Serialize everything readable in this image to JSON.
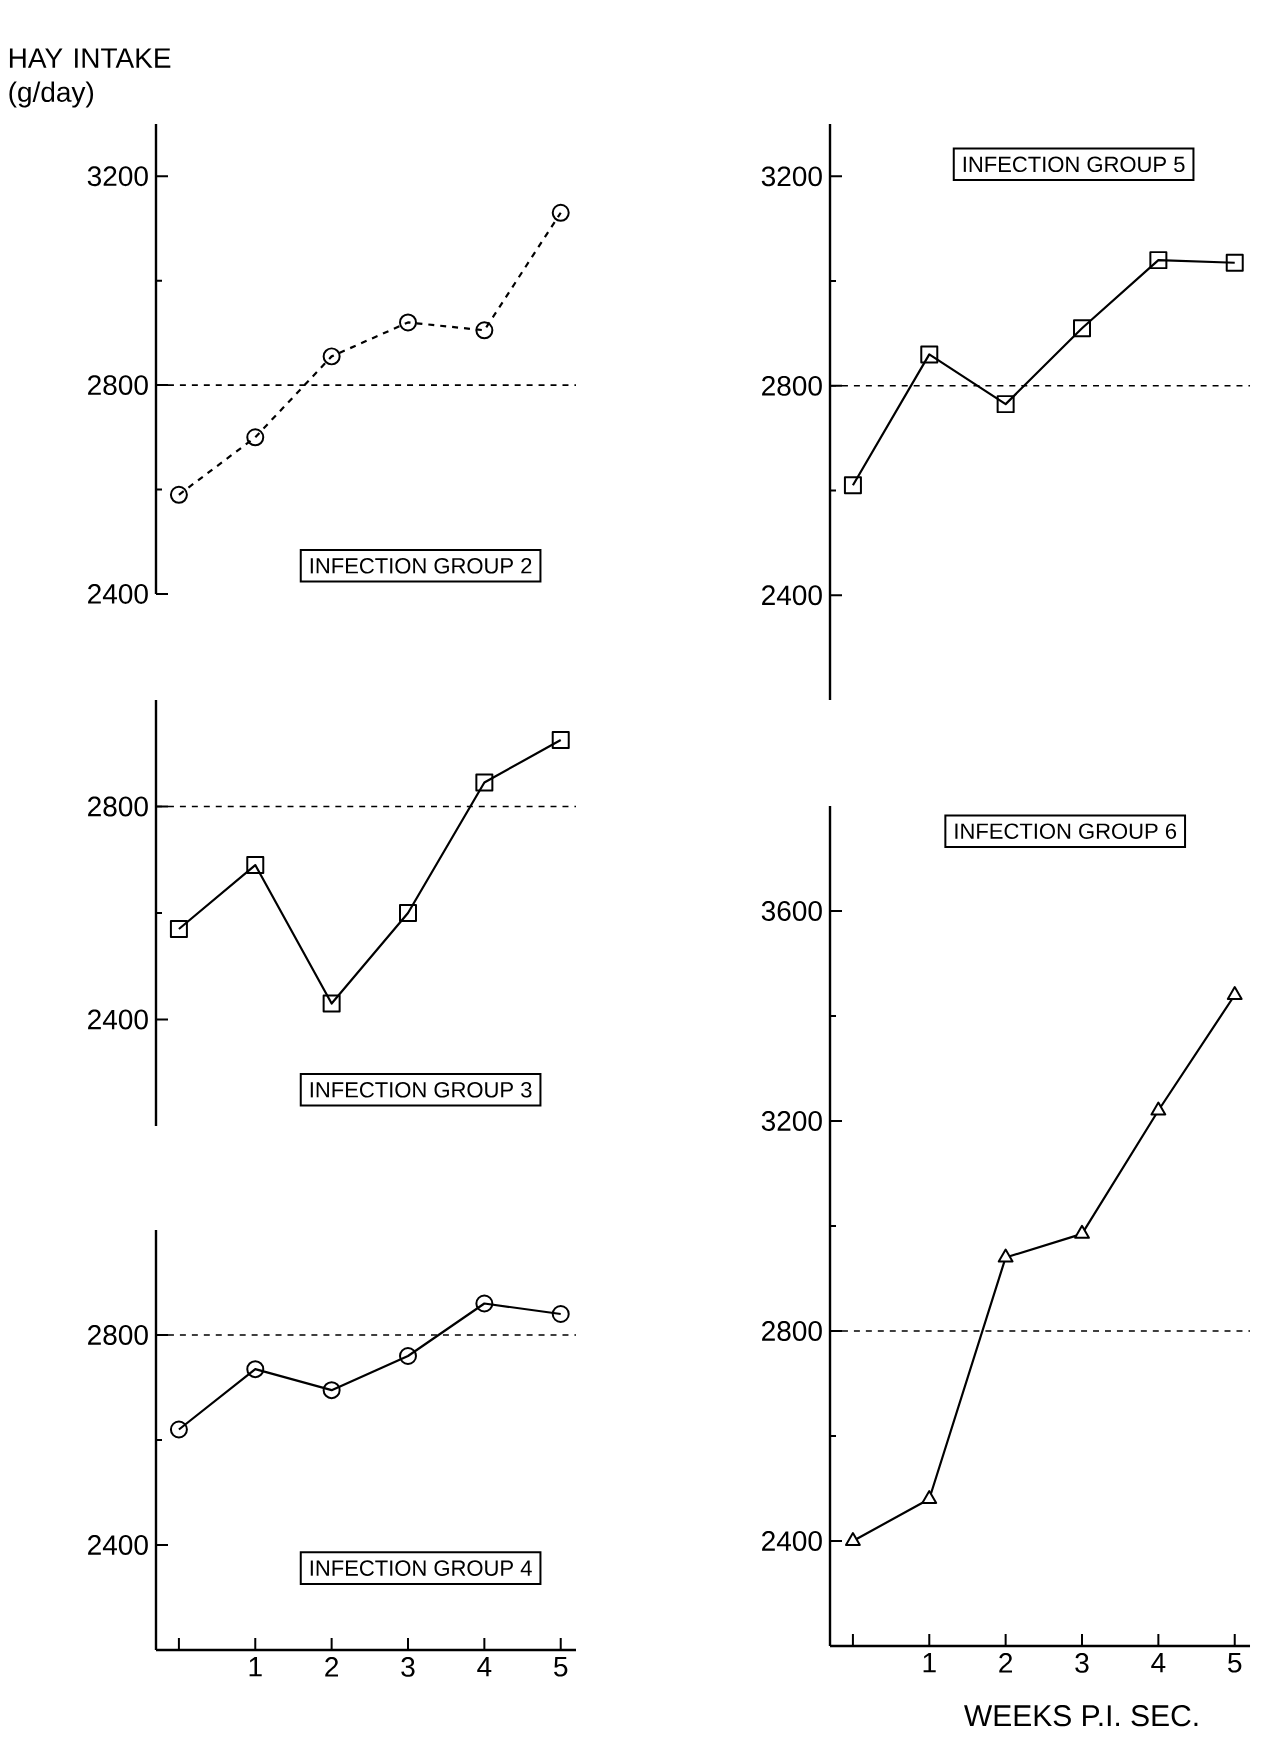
{
  "chart_data": [
    {
      "type": "line",
      "title": "INFECTION GROUP 2",
      "ylabel": "HAY INTAKE (g/day)",
      "x": [
        0,
        1,
        2,
        3,
        4,
        5
      ],
      "values": [
        2590,
        2700,
        2855,
        2920,
        2905,
        3130
      ],
      "color": "#000000",
      "marker": "circle",
      "line_style": "dashed",
      "xlim": [
        -0.3,
        5.2
      ],
      "ylim": [
        2400,
        3300
      ],
      "yticks": [
        2400,
        2800,
        3200
      ],
      "tick_labels": "y",
      "ref_lines": [
        {
          "axis": "y",
          "value": 2800,
          "line_style": "dashed"
        }
      ]
    },
    {
      "type": "line",
      "title": "INFECTION GROUP 5",
      "x": [
        0,
        1,
        2,
        3,
        4,
        5
      ],
      "values": [
        2610,
        2860,
        2765,
        2910,
        3040,
        3035
      ],
      "color": "#000000",
      "marker": "square",
      "line_style": "solid",
      "xlim": [
        -0.3,
        5.2
      ],
      "ylim": [
        2200,
        3300
      ],
      "yticks": [
        2400,
        2800,
        3200
      ],
      "tick_labels": "y",
      "ref_lines": [
        {
          "axis": "y",
          "value": 2800,
          "line_style": "dashed"
        }
      ]
    },
    {
      "type": "line",
      "title": "INFECTION GROUP 3",
      "x": [
        0,
        1,
        2,
        3,
        4,
        5
      ],
      "values": [
        2570,
        2690,
        2430,
        2600,
        2845,
        2925
      ],
      "color": "#000000",
      "marker": "square",
      "line_style": "solid",
      "xlim": [
        -0.3,
        5.2
      ],
      "ylim": [
        2200,
        3000
      ],
      "yticks": [
        2400,
        2800
      ],
      "tick_labels": "y",
      "ref_lines": [
        {
          "axis": "y",
          "value": 2800,
          "line_style": "dashed"
        }
      ]
    },
    {
      "type": "line",
      "title": "INFECTION GROUP 6",
      "xlabel": "WEEKS P.I. SEC.",
      "x": [
        0,
        1,
        2,
        3,
        4,
        5
      ],
      "values": [
        2400,
        2480,
        2940,
        2985,
        3220,
        3440
      ],
      "color": "#000000",
      "marker": "triangle",
      "line_style": "solid",
      "xlim": [
        -0.3,
        5.2
      ],
      "ylim": [
        2200,
        3800
      ],
      "xticks": [
        {
          "value": 0,
          "label": null
        },
        1,
        2,
        3,
        4,
        5
      ],
      "yticks": [
        2400,
        2800,
        3200,
        3600
      ],
      "ref_lines": [
        {
          "axis": "y",
          "value": 2800,
          "line_style": "dashed"
        }
      ]
    },
    {
      "type": "line",
      "title": "INFECTION GROUP 4",
      "x": [
        0,
        1,
        2,
        3,
        4,
        5
      ],
      "values": [
        2620,
        2735,
        2695,
        2760,
        2860,
        2840
      ],
      "color": "#000000",
      "marker": "circle",
      "line_style": "solid",
      "xlim": [
        -0.3,
        5.2
      ],
      "ylim": [
        2200,
        3000
      ],
      "xticks": [
        {
          "value": 0,
          "label": null
        },
        1,
        2,
        3,
        4,
        5
      ],
      "yticks": [
        2400,
        2800
      ],
      "ref_lines": [
        {
          "axis": "y",
          "value": 2800,
          "line_style": "dashed"
        }
      ]
    }
  ]
}
